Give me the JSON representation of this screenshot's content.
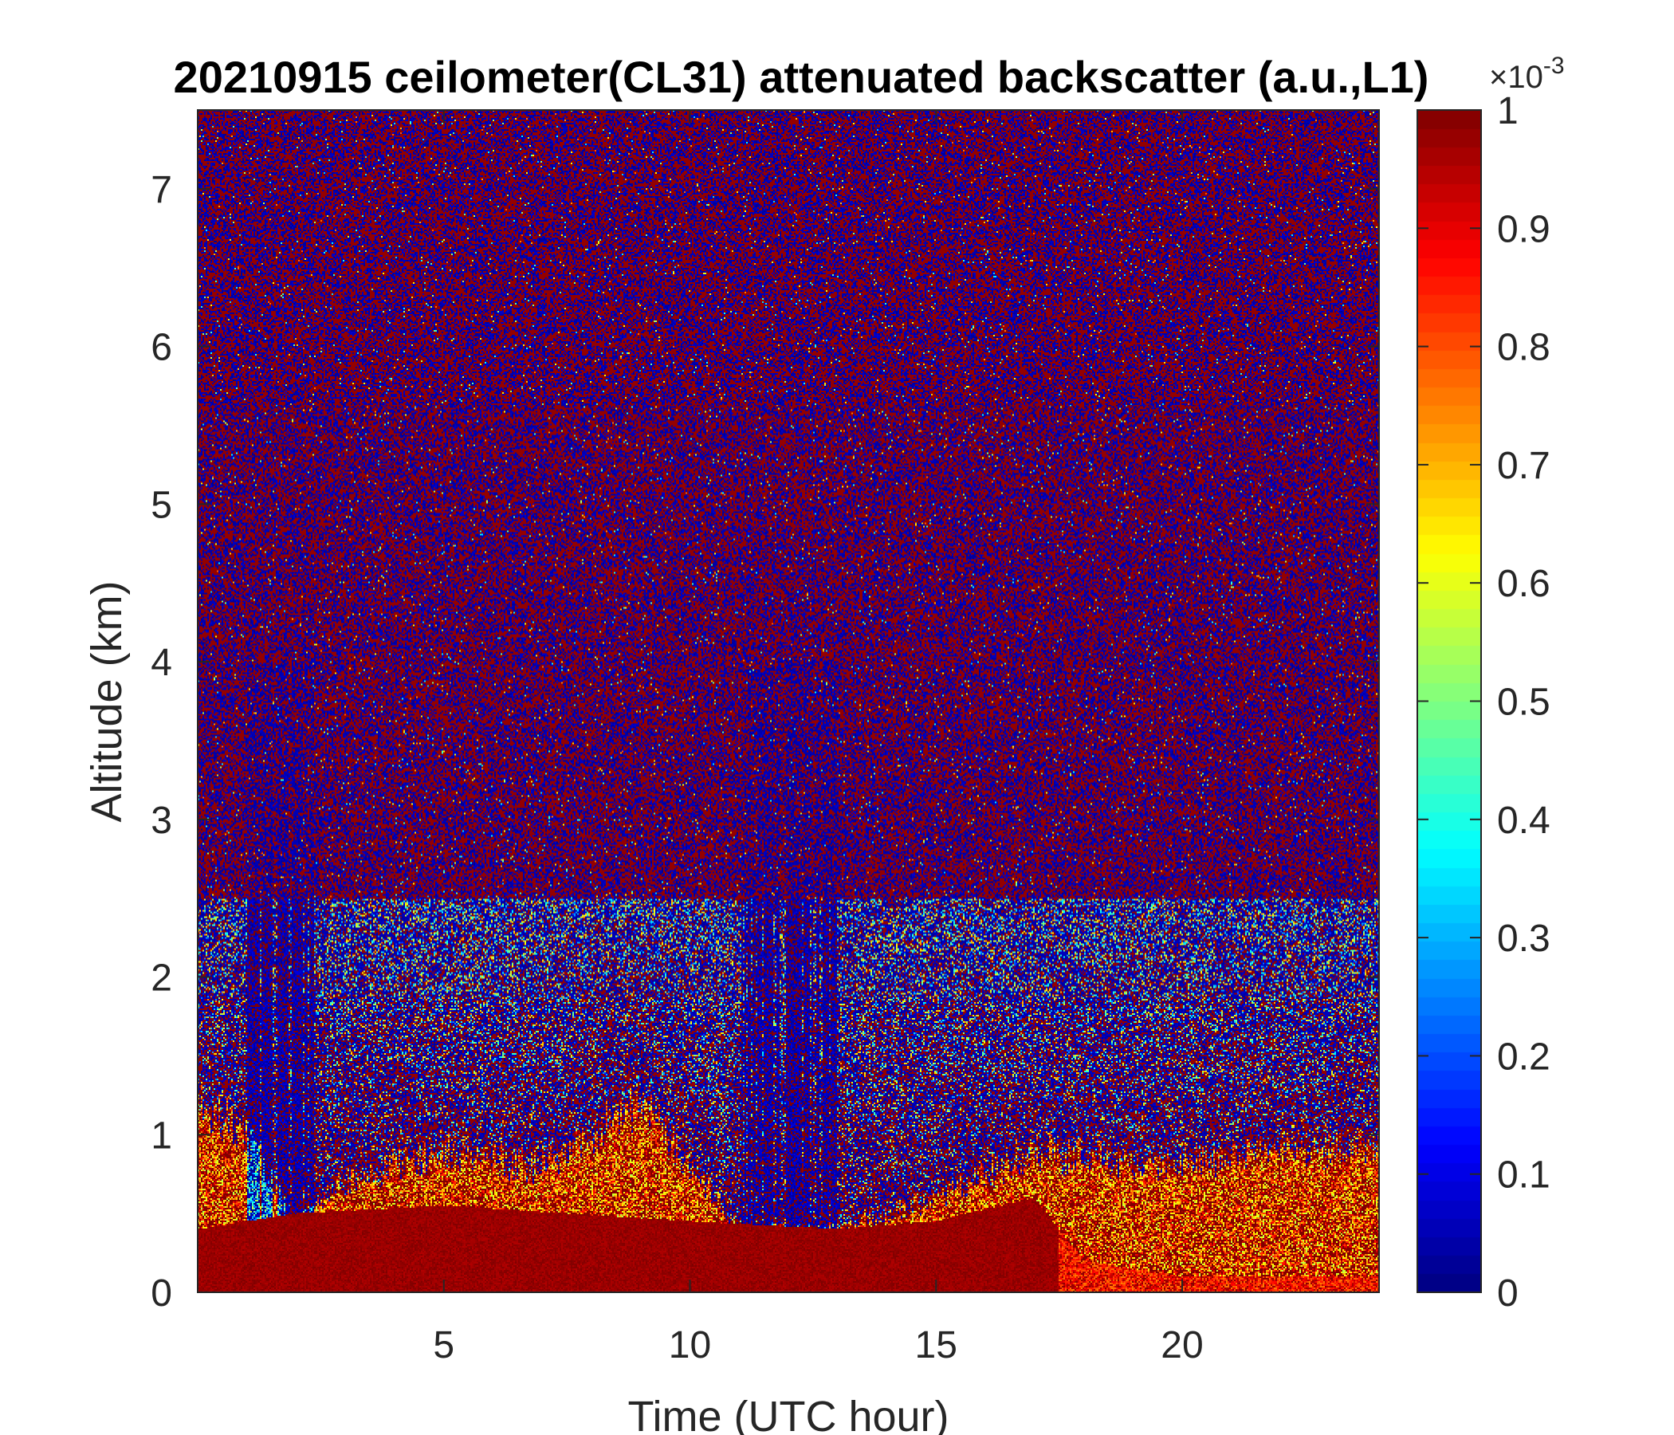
{
  "chart_data": {
    "type": "heatmap",
    "title": "20210915 ceilometer(CL31) attenuated backscatter (a.u.,L1)",
    "xlabel": "Time (UTC hour)",
    "ylabel": "Altitude (km)",
    "xlim": [
      0,
      24
    ],
    "ylim": [
      0,
      7.5
    ],
    "xticks": [
      5,
      10,
      15,
      20
    ],
    "yticks": [
      0,
      1,
      2,
      3,
      4,
      5,
      6,
      7
    ],
    "colorbar": {
      "colormap": "jet",
      "clim": [
        0,
        1
      ],
      "ticks": [
        0,
        0.1,
        0.2,
        0.3,
        0.4,
        0.5,
        0.6,
        0.7,
        0.8,
        0.9,
        1
      ],
      "exponent_base": "×10",
      "exponent": "-3"
    },
    "features": {
      "boundary_layer_top_km": [
        [
          0,
          1.2
        ],
        [
          1,
          1.0
        ],
        [
          2,
          0.4
        ],
        [
          3,
          0.7
        ],
        [
          5,
          0.9
        ],
        [
          7,
          0.8
        ],
        [
          9,
          1.2
        ],
        [
          10,
          0.8
        ],
        [
          11,
          0.4
        ],
        [
          13,
          0.4
        ],
        [
          15,
          0.6
        ],
        [
          17,
          0.9
        ],
        [
          19,
          0.8
        ],
        [
          22,
          0.9
        ],
        [
          24,
          0.9
        ]
      ],
      "surface_layer_top_km": [
        [
          0,
          0.4
        ],
        [
          2,
          0.5
        ],
        [
          5,
          0.55
        ],
        [
          10,
          0.45
        ],
        [
          13,
          0.4
        ],
        [
          15,
          0.45
        ],
        [
          17,
          0.6
        ],
        [
          18,
          0.2
        ],
        [
          20,
          0.1
        ],
        [
          24,
          0.1
        ]
      ],
      "low_signal_columns_hours": [
        [
          1.0,
          2.4
        ],
        [
          11.0,
          13.0
        ]
      ]
    }
  }
}
